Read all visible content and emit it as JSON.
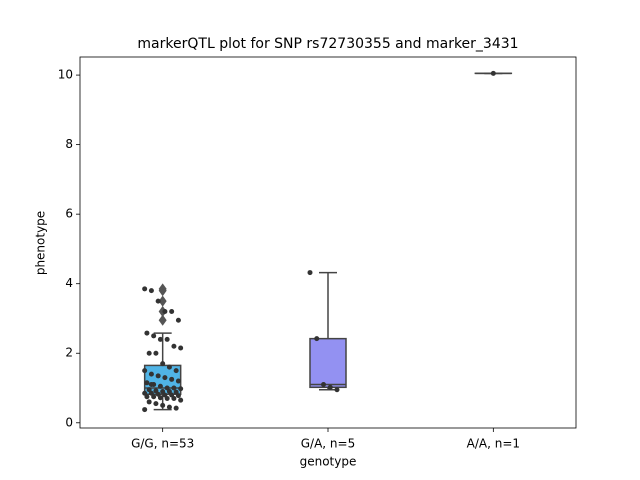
{
  "chart_data": {
    "type": "box",
    "title": "markerQTL plot for SNP rs72730355 and marker_3431",
    "xlabel": "genotype",
    "ylabel": "phenotype",
    "categories": [
      "G/G, n=53",
      "G/A, n=5",
      "A/A, n=1"
    ],
    "ylim": [
      -0.15,
      10.52
    ],
    "yticks": [
      0,
      2,
      4,
      6,
      8,
      10
    ],
    "boxes": [
      {
        "color": "#50b4e6",
        "whislo": 0.38,
        "q1": 0.82,
        "med": 1.0,
        "q3": 1.65,
        "whishi": 2.58,
        "fliers": [
          2.95,
          3.2,
          3.5,
          3.8,
          3.85
        ],
        "points": [
          3.85,
          3.8,
          3.5,
          3.2,
          3.2,
          2.95,
          2.58,
          2.5,
          2.4,
          2.4,
          2.2,
          2.15,
          2.0,
          2.0,
          1.7,
          1.6,
          1.5,
          1.5,
          1.4,
          1.35,
          1.3,
          1.25,
          1.2,
          1.15,
          1.1,
          1.05,
          1.0,
          1.0,
          0.98,
          0.95,
          0.92,
          0.9,
          0.9,
          0.88,
          0.85,
          0.85,
          0.82,
          0.8,
          0.8,
          0.78,
          0.75,
          0.75,
          0.72,
          0.7,
          0.7,
          0.65,
          0.6,
          0.55,
          0.5,
          0.45,
          0.42,
          0.38,
          1.1
        ]
      },
      {
        "color": "#9391f2",
        "whislo": 0.95,
        "q1": 1.02,
        "med": 1.1,
        "q3": 2.42,
        "whishi": 4.32,
        "fliers": [],
        "points": [
          4.32,
          2.42,
          1.1,
          1.02,
          0.95
        ]
      },
      {
        "color": "#c5a0f0",
        "whislo": 10.05,
        "q1": 10.05,
        "med": 10.05,
        "q3": 10.05,
        "whishi": 10.05,
        "fliers": [],
        "points": [
          10.05
        ]
      }
    ]
  }
}
